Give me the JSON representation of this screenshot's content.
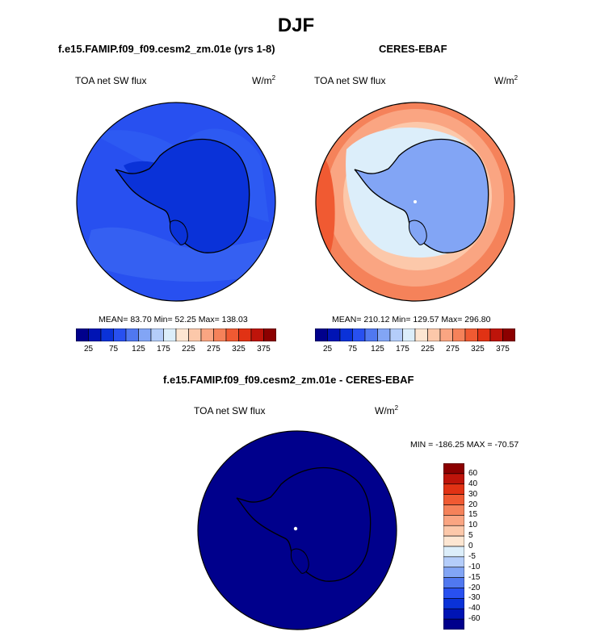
{
  "figure": {
    "title": "DJF"
  },
  "panels": {
    "model": {
      "title": "f.e15.FAMIP.f09_f09.cesm2_zm.01e (yrs 1-8)",
      "variable": "TOA net SW flux",
      "units_base": "W/m",
      "units_exp": "2",
      "stats": "MEAN=  83.70  Min=  52.25  Max= 138.03"
    },
    "obs": {
      "title": "CERES-EBAF",
      "variable": "TOA net SW flux",
      "units_base": "W/m",
      "units_exp": "2",
      "stats": "MEAN= 210.12  Min= 129.57  Max= 296.80"
    },
    "diff": {
      "title": "f.e15.FAMIP.f09_f09.cesm2_zm.01e - CERES-EBAF",
      "variable": "TOA net SW flux",
      "units_base": "W/m",
      "units_exp": "2",
      "stats": "MIN = -186.25 MAX = -70.57"
    }
  },
  "colorbars": {
    "abs": {
      "colors": [
        "#00008c",
        "#0014b4",
        "#0a32d8",
        "#2850f0",
        "#5078f0",
        "#82a5f5",
        "#b4cdfa",
        "#dceefa",
        "#fde6d2",
        "#fcc8aa",
        "#faa582",
        "#f5825a",
        "#f05a32",
        "#e13214",
        "#be140a",
        "#8c0000"
      ],
      "tick_labels": [
        "25",
        "75",
        "125",
        "175",
        "225",
        "275",
        "325",
        "375"
      ]
    },
    "diff": {
      "colors": [
        "#00008c",
        "#0014b4",
        "#0a32d8",
        "#2850f0",
        "#5078f0",
        "#82a5f5",
        "#b4cdfa",
        "#dceefa",
        "#fde6d2",
        "#fcc8aa",
        "#faa582",
        "#f5825a",
        "#f05a32",
        "#e13214",
        "#be140a",
        "#8c0000"
      ],
      "tick_labels": [
        "60",
        "40",
        "30",
        "20",
        "15",
        "10",
        "5",
        "0",
        "-5",
        "-10",
        "-15",
        "-20",
        "-30",
        "-40",
        "-60"
      ]
    }
  }
}
